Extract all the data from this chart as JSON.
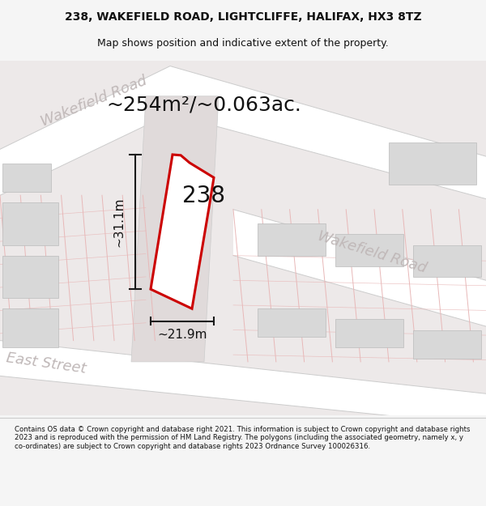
{
  "title_line1": "238, WAKEFIELD ROAD, LIGHTCLIFFE, HALIFAX, HX3 8TZ",
  "title_line2": "Map shows position and indicative extent of the property.",
  "area_text": "~254m²/~0.063ac.",
  "property_number": "238",
  "width_label": "~21.9m",
  "height_label": "~31.1m",
  "road_label_topleft": "Wakefield Road",
  "road_label_right": "Wakefield Road",
  "street_label_bottom": "East Street",
  "footer_text": "Contains OS data © Crown copyright and database right 2021. This information is subject to Crown copyright and database rights 2023 and is reproduced with the permission of HM Land Registry. The polygons (including the associated geometry, namely x, y co-ordinates) are subject to Crown copyright and database rights 2023 Ordnance Survey 100026316.",
  "bg_color": "#f5f5f5",
  "map_bg": "#ede9e9",
  "road_fill": "#ffffff",
  "road_edge": "#cccccc",
  "road_line_color": "#e8b8b8",
  "block_color": "#d8d8d8",
  "block_ec": "#bbbbbb",
  "property_fill": "#ffffff",
  "property_outline": "#cc0000",
  "dim_line_color": "#1a1a1a",
  "road_label_color": "#c0b8b8",
  "title_fontsize": 10,
  "subtitle_fontsize": 9,
  "road_label_fontsize": 13,
  "area_fontsize": 18,
  "number_fontsize": 20,
  "dim_fontsize": 11
}
